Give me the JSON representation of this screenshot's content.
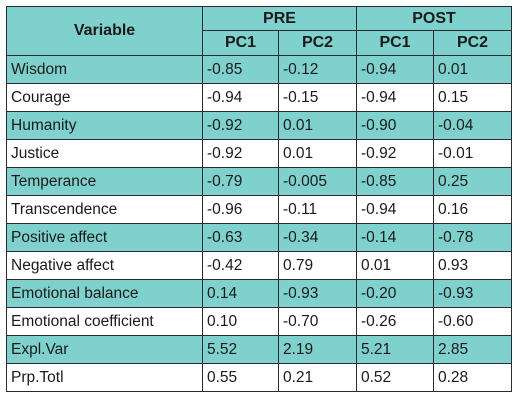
{
  "header": {
    "variable": "Variable",
    "pre": "PRE",
    "post": "POST",
    "pc1_pre": "PC1",
    "pc2_pre": "PC2",
    "pc1_post": "PC1",
    "pc2_post": "PC2"
  },
  "rows": [
    {
      "variable": "Wisdom",
      "pre_pc1": "-0.85",
      "pre_pc2": "-0.12",
      "post_pc1": "-0.94",
      "post_pc2": "0.01"
    },
    {
      "variable": "Courage",
      "pre_pc1": "-0.94",
      "pre_pc2": "-0.15",
      "post_pc1": "-0.94",
      "post_pc2": "0.15"
    },
    {
      "variable": "Humanity",
      "pre_pc1": "-0.92",
      "pre_pc2": "0.01",
      "post_pc1": "-0.90",
      "post_pc2": "-0.04"
    },
    {
      "variable": "Justice",
      "pre_pc1": "-0.92",
      "pre_pc2": "0.01",
      "post_pc1": "-0.92",
      "post_pc2": "-0.01"
    },
    {
      "variable": "Temperance",
      "pre_pc1": "-0.79",
      "pre_pc2": "-0.005",
      "post_pc1": "-0.85",
      "post_pc2": "0.25"
    },
    {
      "variable": "Transcendence",
      "pre_pc1": "-0.96",
      "pre_pc2": "-0.11",
      "post_pc1": "-0.94",
      "post_pc2": "0.16"
    },
    {
      "variable": "Positive affect",
      "pre_pc1": "-0.63",
      "pre_pc2": "-0.34",
      "post_pc1": "-0.14",
      "post_pc2": "-0.78"
    },
    {
      "variable": "Negative affect",
      "pre_pc1": "-0.42",
      "pre_pc2": "0.79",
      "post_pc1": "0.01",
      "post_pc2": "0.93"
    },
    {
      "variable": "Emotional balance",
      "pre_pc1": "0.14",
      "pre_pc2": "-0.93",
      "post_pc1": "-0.20",
      "post_pc2": "-0.93"
    },
    {
      "variable": "Emotional coefficient",
      "pre_pc1": "0.10",
      "pre_pc2": "-0.70",
      "post_pc1": "-0.26",
      "post_pc2": "-0.60"
    },
    {
      "variable": "Expl.Var",
      "pre_pc1": "5.52",
      "pre_pc2": "2.19",
      "post_pc1": "5.21",
      "post_pc2": "2.85"
    },
    {
      "variable": "Prp.Totl",
      "pre_pc1": "0.55",
      "pre_pc2": "0.21",
      "post_pc1": "0.52",
      "post_pc2": "0.28"
    }
  ],
  "colors": {
    "shaded_row": "#7fd1cd",
    "plain_row": "#ffffff",
    "border": "#2b2b2b"
  }
}
